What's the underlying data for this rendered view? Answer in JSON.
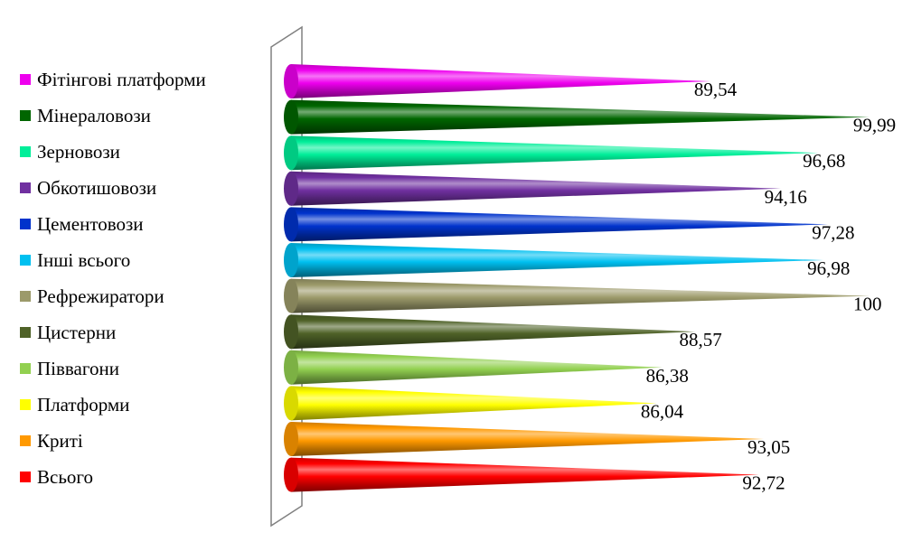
{
  "chart_data": {
    "type": "bar",
    "bar_shape": "cone",
    "orientation": "horizontal",
    "categories": [
      "Фітінгові платформи",
      "Мінераловози",
      "Зерновози",
      "Обкотишовози",
      "Цементовози",
      "Інші всього",
      "Рефрежиратори",
      "Цистерни",
      "Піввагони",
      "Платформи",
      "Криті",
      "Всього"
    ],
    "values": [
      89.54,
      99.99,
      96.68,
      94.16,
      97.28,
      96.98,
      100,
      88.57,
      86.38,
      86.04,
      93.05,
      92.72
    ],
    "value_labels": [
      "89,54",
      "99,99",
      "96,68",
      "94,16",
      "97,28",
      "96,98",
      "100",
      "88,57",
      "86,38",
      "86,04",
      "93,05",
      "92,72"
    ],
    "colors": [
      "#ee00ee",
      "#006600",
      "#00ee99",
      "#7030a0",
      "#0033cc",
      "#00c0f0",
      "#9c9a6a",
      "#4f6228",
      "#92d050",
      "#ffff00",
      "#ff9900",
      "#ff0000"
    ],
    "xlim": [
      62,
      100
    ],
    "legend_position": "left",
    "grid": false,
    "title": "",
    "xlabel": "",
    "ylabel": ""
  }
}
